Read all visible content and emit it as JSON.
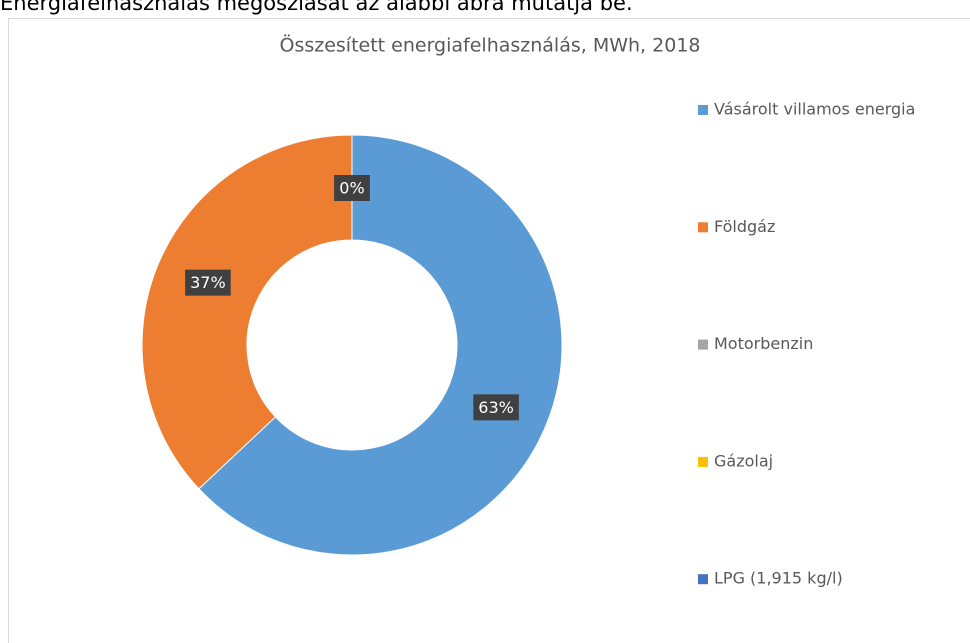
{
  "caption": "Energiafelhasználás megoszlását az alábbi ábra mutatja be.",
  "chart_data": {
    "type": "donut",
    "title": "Összesített energiafelhasználás, MWh, 2018",
    "categories": [
      "Vásárolt villamos energia",
      "Földgáz",
      "Motorbenzin",
      "Gázolaj",
      "LPG (1,915 kg/l)"
    ],
    "values": [
      63,
      37,
      0,
      0,
      0
    ],
    "value_labels": [
      "63%",
      "37%",
      "0%",
      "0%",
      "0%"
    ],
    "colors": [
      "#5b9bd5",
      "#ed7d31",
      "#a5a5a5",
      "#ffc000",
      "#4472c4"
    ],
    "legend": "right"
  }
}
